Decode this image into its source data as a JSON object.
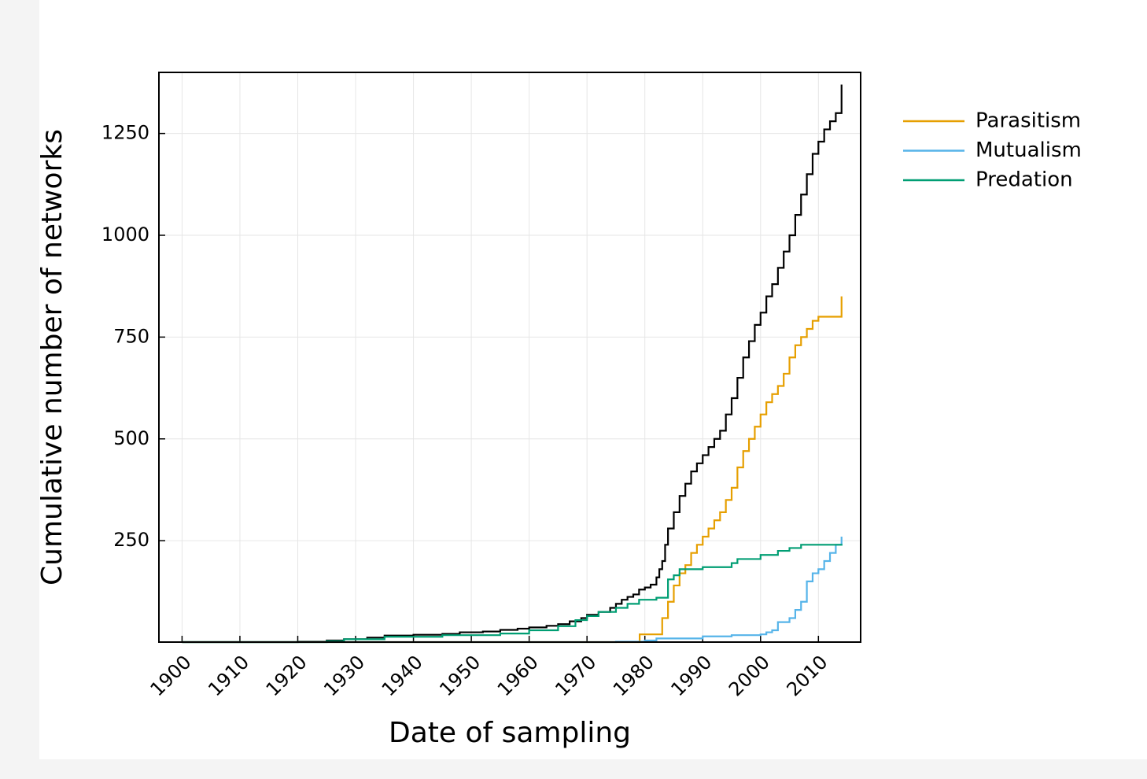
{
  "chart_data": {
    "type": "line",
    "step": true,
    "xlabel": "Date of sampling",
    "ylabel": "Cumulative number of networks",
    "xlim": [
      1896,
      2017.3
    ],
    "ylim": [
      1,
      1400
    ],
    "xticks": [
      1900,
      1910,
      1920,
      1930,
      1940,
      1950,
      1960,
      1970,
      1980,
      1990,
      2000,
      2010
    ],
    "yticks": [
      250,
      500,
      750,
      1000,
      1250
    ],
    "grid": true,
    "legend": "outside-right",
    "series": [
      {
        "color": "#000000",
        "x": [
          1900,
          1920,
          1925,
          1928,
          1932,
          1935,
          1940,
          1945,
          1948,
          1952,
          1955,
          1958,
          1960,
          1963,
          1965,
          1967,
          1969,
          1970,
          1972,
          1974,
          1975,
          1976,
          1977,
          1978,
          1979,
          1980,
          1981,
          1982,
          1982.5,
          1983,
          1983.5,
          1984,
          1985,
          1986,
          1987,
          1988,
          1989,
          1990,
          1991,
          1992,
          1993,
          1994,
          1995,
          1996,
          1997,
          1998,
          1999,
          2000,
          2001,
          2002,
          2003,
          2004,
          2005,
          2006,
          2007,
          2008,
          2009,
          2010,
          2011,
          2012,
          2013,
          2014
        ],
        "values": [
          1,
          2,
          5,
          8,
          12,
          17,
          19,
          21,
          25,
          27,
          31,
          34,
          37,
          41,
          45,
          52,
          60,
          68,
          75,
          85,
          95,
          105,
          112,
          118,
          130,
          135,
          142,
          160,
          180,
          200,
          240,
          280,
          320,
          360,
          390,
          420,
          440,
          460,
          480,
          500,
          520,
          560,
          600,
          650,
          700,
          740,
          780,
          810,
          850,
          880,
          920,
          960,
          1000,
          1050,
          1100,
          1150,
          1200,
          1230,
          1260,
          1280,
          1300,
          1370
        ]
      },
      {
        "name": "Parasitism",
        "color": "#e69f00",
        "x": [
          1900,
          1979,
          1979.1,
          1982,
          1983,
          1984,
          1985,
          1986,
          1987,
          1988,
          1989,
          1990,
          1991,
          1992,
          1993,
          1994,
          1995,
          1996,
          1997,
          1998,
          1999,
          2000,
          2001,
          2002,
          2003,
          2004,
          2005,
          2006,
          2007,
          2008,
          2009,
          2010,
          2013.9,
          2014
        ],
        "values": [
          1,
          2,
          20,
          20,
          60,
          100,
          140,
          170,
          190,
          220,
          240,
          260,
          280,
          300,
          320,
          350,
          380,
          430,
          470,
          500,
          530,
          560,
          590,
          610,
          630,
          660,
          700,
          730,
          750,
          770,
          790,
          800,
          800,
          850
        ]
      },
      {
        "name": "Mutualism",
        "color": "#56b4e9",
        "x": [
          1900,
          1975,
          1980,
          1982,
          1990,
          1995,
          2000,
          2001,
          2002,
          2003,
          2005,
          2006,
          2007,
          2008,
          2009,
          2010,
          2011,
          2012,
          2013,
          2014
        ],
        "values": [
          1,
          2,
          5,
          10,
          15,
          18,
          20,
          25,
          30,
          50,
          60,
          80,
          100,
          150,
          170,
          180,
          200,
          220,
          240,
          260
        ]
      },
      {
        "name": "Predation",
        "color": "#009e73",
        "x": [
          1900,
          1925,
          1928,
          1935,
          1945,
          1955,
          1960,
          1965,
          1968,
          1970,
          1972,
          1975,
          1977,
          1979,
          1982,
          1984,
          1985,
          1986,
          1990,
          1995,
          1996,
          2000,
          2003,
          2005,
          2007,
          2014
        ],
        "values": [
          1,
          3,
          8,
          14,
          18,
          22,
          30,
          40,
          55,
          65,
          75,
          85,
          95,
          105,
          110,
          155,
          165,
          180,
          185,
          195,
          205,
          215,
          225,
          232,
          240,
          242
        ]
      }
    ]
  }
}
